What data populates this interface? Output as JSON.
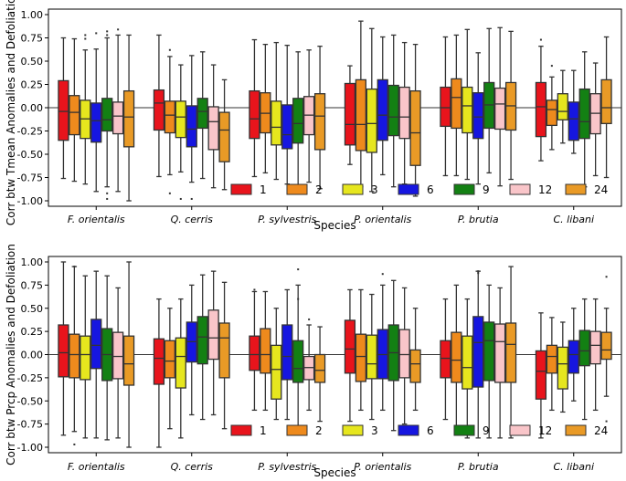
{
  "chart_data": [
    {
      "type": "box",
      "title": "",
      "xlabel": "Species",
      "ylabel": "Corr btw Tmean Anomalies and Defoliation",
      "ylim": [
        -1.0,
        1.0
      ],
      "yticks": [
        "1.00",
        "0.75",
        "0.50",
        "0.25",
        "0.00",
        "-0.25",
        "-0.50",
        "-0.75",
        "-1.00"
      ],
      "ytick_values": [
        1.0,
        0.75,
        0.5,
        0.25,
        0.0,
        -0.25,
        -0.5,
        -0.75,
        -1.0
      ],
      "reference_line": 0.0,
      "categories": [
        "F. orientalis",
        "Q. cerris",
        "P. sylvestris",
        "P. orientalis",
        "P. brutia",
        "C. libani"
      ],
      "legend_placement": "bottom-right",
      "series": [
        {
          "name": "1",
          "color": "#e8141c",
          "boxes": [
            {
              "wlo": -0.76,
              "q1": -0.35,
              "med": -0.04,
              "q3": 0.29,
              "whi": 0.75
            },
            {
              "wlo": -0.74,
              "q1": -0.24,
              "med": 0.05,
              "q3": 0.19,
              "whi": 0.78
            },
            {
              "wlo": -0.74,
              "q1": -0.33,
              "med": -0.12,
              "q3": 0.18,
              "whi": 0.73
            },
            {
              "wlo": -0.61,
              "q1": -0.4,
              "med": -0.18,
              "q3": 0.26,
              "whi": 0.45
            },
            {
              "wlo": -0.73,
              "q1": -0.2,
              "med": 0.0,
              "q3": 0.22,
              "whi": 0.76
            },
            {
              "wlo": -0.57,
              "q1": -0.31,
              "med": 0.01,
              "q3": 0.27,
              "whi": 0.66
            }
          ]
        },
        {
          "name": "2",
          "color": "#ee8a1d",
          "boxes": [
            {
              "wlo": -0.79,
              "q1": -0.29,
              "med": -0.05,
              "q3": 0.13,
              "whi": 0.74
            },
            {
              "wlo": -0.72,
              "q1": -0.27,
              "med": -0.08,
              "q3": 0.07,
              "whi": 0.55
            },
            {
              "wlo": -0.7,
              "q1": -0.27,
              "med": -0.06,
              "q3": 0.16,
              "whi": 0.68
            },
            {
              "wlo": -0.85,
              "q1": -0.46,
              "med": -0.18,
              "q3": 0.3,
              "whi": 0.93
            },
            {
              "wlo": -0.73,
              "q1": -0.22,
              "med": 0.11,
              "q3": 0.31,
              "whi": 0.78
            },
            {
              "wlo": -0.45,
              "q1": -0.19,
              "med": -0.02,
              "q3": 0.08,
              "whi": 0.33
            }
          ]
        },
        {
          "name": "3",
          "color": "#e6e61e",
          "boxes": [
            {
              "wlo": -0.82,
              "q1": -0.33,
              "med": -0.12,
              "q3": 0.08,
              "whi": 0.62
            },
            {
              "wlo": -0.69,
              "q1": -0.32,
              "med": -0.1,
              "q3": 0.07,
              "whi": 0.46
            },
            {
              "wlo": -0.77,
              "q1": -0.4,
              "med": -0.21,
              "q3": 0.07,
              "whi": 0.7
            },
            {
              "wlo": -0.9,
              "q1": -0.48,
              "med": -0.17,
              "q3": 0.2,
              "whi": 0.85
            },
            {
              "wlo": -0.77,
              "q1": -0.27,
              "med": 0.02,
              "q3": 0.22,
              "whi": 0.84
            },
            {
              "wlo": -0.38,
              "q1": -0.13,
              "med": -0.04,
              "q3": 0.15,
              "whi": 0.4
            }
          ]
        },
        {
          "name": "6",
          "color": "#1616e0",
          "boxes": [
            {
              "wlo": -0.9,
              "q1": -0.37,
              "med": -0.14,
              "q3": 0.05,
              "whi": 0.63
            },
            {
              "wlo": -0.8,
              "q1": -0.42,
              "med": -0.23,
              "q3": 0.02,
              "whi": 0.56
            },
            {
              "wlo": -0.82,
              "q1": -0.44,
              "med": -0.29,
              "q3": 0.03,
              "whi": 0.67
            },
            {
              "wlo": -0.72,
              "q1": -0.35,
              "med": -0.08,
              "q3": 0.3,
              "whi": 0.76
            },
            {
              "wlo": -0.82,
              "q1": -0.33,
              "med": -0.1,
              "q3": 0.16,
              "whi": 0.59
            },
            {
              "wlo": -0.49,
              "q1": -0.35,
              "med": -0.12,
              "q3": 0.06,
              "whi": 0.4
            }
          ]
        },
        {
          "name": "9",
          "color": "#138013",
          "boxes": [
            {
              "wlo": -0.85,
              "q1": -0.25,
              "med": -0.13,
              "q3": 0.1,
              "whi": 0.75
            },
            {
              "wlo": -0.76,
              "q1": -0.22,
              "med": -0.04,
              "q3": 0.1,
              "whi": 0.6
            },
            {
              "wlo": -0.87,
              "q1": -0.38,
              "med": -0.17,
              "q3": 0.1,
              "whi": 0.6
            },
            {
              "wlo": -0.85,
              "q1": -0.3,
              "med": -0.1,
              "q3": 0.24,
              "whi": 0.78
            },
            {
              "wlo": -0.7,
              "q1": -0.22,
              "med": 0.03,
              "q3": 0.27,
              "whi": 0.85
            },
            {
              "wlo": -0.85,
              "q1": -0.33,
              "med": -0.15,
              "q3": 0.2,
              "whi": 0.6
            }
          ]
        },
        {
          "name": "12",
          "color": "#f9c5c9",
          "boxes": [
            {
              "wlo": -0.9,
              "q1": -0.28,
              "med": -0.09,
              "q3": 0.06,
              "whi": 0.78
            },
            {
              "wlo": -0.86,
              "q1": -0.45,
              "med": -0.15,
              "q3": 0.01,
              "whi": 0.46
            },
            {
              "wlo": -0.8,
              "q1": -0.29,
              "med": -0.08,
              "q3": 0.12,
              "whi": 0.62
            },
            {
              "wlo": -0.82,
              "q1": -0.33,
              "med": -0.1,
              "q3": 0.22,
              "whi": 0.7
            },
            {
              "wlo": -0.84,
              "q1": -0.23,
              "med": 0.04,
              "q3": 0.21,
              "whi": 0.86
            },
            {
              "wlo": -0.73,
              "q1": -0.28,
              "med": -0.06,
              "q3": 0.15,
              "whi": 0.48
            }
          ]
        },
        {
          "name": "24",
          "color": "#e99a26",
          "boxes": [
            {
              "wlo": -1.0,
              "q1": -0.42,
              "med": -0.1,
              "q3": 0.18,
              "whi": 0.78
            },
            {
              "wlo": -0.88,
              "q1": -0.58,
              "med": -0.24,
              "q3": -0.05,
              "whi": 0.3
            },
            {
              "wlo": -0.87,
              "q1": -0.45,
              "med": -0.09,
              "q3": 0.15,
              "whi": 0.66
            },
            {
              "wlo": -0.95,
              "q1": -0.62,
              "med": -0.27,
              "q3": 0.18,
              "whi": 0.68
            },
            {
              "wlo": -0.77,
              "q1": -0.24,
              "med": 0.02,
              "q3": 0.27,
              "whi": 0.82
            },
            {
              "wlo": -0.75,
              "q1": -0.17,
              "med": 0.0,
              "q3": 0.3,
              "whi": 0.76
            }
          ]
        }
      ],
      "outliers": [
        {
          "category": 0,
          "series": 2,
          "values": [
            0.78,
            0.74
          ]
        },
        {
          "category": 0,
          "series": 3,
          "values": [
            0.8
          ]
        },
        {
          "category": 0,
          "series": 4,
          "values": [
            0.82,
            0.78,
            -0.92,
            -0.98
          ]
        },
        {
          "category": 0,
          "series": 5,
          "values": [
            0.84
          ]
        },
        {
          "category": 1,
          "series": 1,
          "values": [
            0.62,
            -0.92
          ]
        },
        {
          "category": 1,
          "series": 2,
          "values": [
            -0.98
          ]
        },
        {
          "category": 1,
          "series": 3,
          "values": [
            -0.98
          ]
        },
        {
          "category": 5,
          "series": 0,
          "values": [
            0.73
          ]
        },
        {
          "category": 5,
          "series": 1,
          "values": [
            0.45
          ]
        }
      ]
    },
    {
      "type": "box",
      "title": "",
      "xlabel": "Species",
      "ylabel": "Corr btw Prcp Anomalies and Defoliation",
      "ylim": [
        -1.0,
        1.0
      ],
      "yticks": [
        "1.00",
        "0.75",
        "0.50",
        "0.25",
        "0.00",
        "-0.25",
        "-0.50",
        "-0.75",
        "-1.00"
      ],
      "ytick_values": [
        1.0,
        0.75,
        0.5,
        0.25,
        0.0,
        -0.25,
        -0.5,
        -0.75,
        -1.0
      ],
      "reference_line": 0.0,
      "categories": [
        "F. orientalis",
        "Q. cerris",
        "P. sylvestris",
        "P. orientalis",
        "P. brutia",
        "C. libani"
      ],
      "legend_placement": "bottom-right",
      "series": [
        {
          "name": "1",
          "color": "#e8141c",
          "boxes": [
            {
              "wlo": -0.87,
              "q1": -0.24,
              "med": 0.02,
              "q3": 0.32,
              "whi": 1.0
            },
            {
              "wlo": -1.0,
              "q1": -0.32,
              "med": -0.04,
              "q3": 0.17,
              "whi": 0.6
            },
            {
              "wlo": -0.6,
              "q1": -0.17,
              "med": 0.0,
              "q3": 0.2,
              "whi": 0.68
            },
            {
              "wlo": -0.72,
              "q1": -0.2,
              "med": 0.06,
              "q3": 0.37,
              "whi": 0.7
            },
            {
              "wlo": -0.7,
              "q1": -0.25,
              "med": -0.04,
              "q3": 0.15,
              "whi": 0.6
            },
            {
              "wlo": -0.9,
              "q1": -0.48,
              "med": -0.18,
              "q3": 0.04,
              "whi": 0.45
            }
          ]
        },
        {
          "name": "2",
          "color": "#ee8a1d",
          "boxes": [
            {
              "wlo": -0.83,
              "q1": -0.25,
              "med": 0.0,
              "q3": 0.22,
              "whi": 0.95
            },
            {
              "wlo": -0.8,
              "q1": -0.25,
              "med": -0.07,
              "q3": 0.15,
              "whi": 0.5
            },
            {
              "wlo": -0.6,
              "q1": -0.2,
              "med": 0.0,
              "q3": 0.28,
              "whi": 0.68
            },
            {
              "wlo": -0.6,
              "q1": -0.29,
              "med": -0.02,
              "q3": 0.22,
              "whi": 0.7
            },
            {
              "wlo": -0.82,
              "q1": -0.3,
              "med": -0.06,
              "q3": 0.24,
              "whi": 0.75
            },
            {
              "wlo": -0.6,
              "q1": -0.2,
              "med": -0.02,
              "q3": 0.1,
              "whi": 0.4
            }
          ]
        },
        {
          "name": "3",
          "color": "#e6e61e",
          "boxes": [
            {
              "wlo": -0.9,
              "q1": -0.27,
              "med": 0.0,
              "q3": 0.2,
              "whi": 0.85
            },
            {
              "wlo": -0.9,
              "q1": -0.36,
              "med": -0.02,
              "q3": 0.18,
              "whi": 0.6
            },
            {
              "wlo": -0.7,
              "q1": -0.48,
              "med": -0.16,
              "q3": 0.1,
              "whi": 0.5
            },
            {
              "wlo": -0.7,
              "q1": -0.26,
              "med": -0.1,
              "q3": 0.21,
              "whi": 0.65
            },
            {
              "wlo": -0.9,
              "q1": -0.37,
              "med": -0.14,
              "q3": 0.2,
              "whi": 0.6
            },
            {
              "wlo": -0.62,
              "q1": -0.37,
              "med": -0.1,
              "q3": 0.08,
              "whi": 0.35
            }
          ]
        },
        {
          "name": "6",
          "color": "#1616e0",
          "boxes": [
            {
              "wlo": -0.9,
              "q1": -0.15,
              "med": 0.1,
              "q3": 0.38,
              "whi": 0.9
            },
            {
              "wlo": -0.65,
              "q1": -0.08,
              "med": 0.14,
              "q3": 0.35,
              "whi": 0.75
            },
            {
              "wlo": -0.7,
              "q1": -0.27,
              "med": -0.02,
              "q3": 0.32,
              "whi": 0.7
            },
            {
              "wlo": -0.6,
              "q1": -0.26,
              "med": 0.0,
              "q3": 0.27,
              "whi": 0.75
            },
            {
              "wlo": -0.9,
              "q1": -0.35,
              "med": 0.13,
              "q3": 0.41,
              "whi": 0.9
            },
            {
              "wlo": -0.5,
              "q1": -0.2,
              "med": 0.0,
              "q3": 0.15,
              "whi": 0.5
            }
          ]
        },
        {
          "name": "9",
          "color": "#138013",
          "boxes": [
            {
              "wlo": -0.92,
              "q1": -0.28,
              "med": 0.0,
              "q3": 0.28,
              "whi": 0.85
            },
            {
              "wlo": -0.7,
              "q1": -0.1,
              "med": 0.19,
              "q3": 0.41,
              "whi": 0.86
            },
            {
              "wlo": -0.82,
              "q1": -0.3,
              "med": -0.15,
              "q3": 0.15,
              "whi": 0.75
            },
            {
              "wlo": -0.82,
              "q1": -0.28,
              "med": 0.02,
              "q3": 0.32,
              "whi": 0.8
            },
            {
              "wlo": -0.9,
              "q1": -0.28,
              "med": 0.15,
              "q3": 0.35,
              "whi": 0.75
            },
            {
              "wlo": -0.7,
              "q1": -0.12,
              "med": 0.04,
              "q3": 0.26,
              "whi": 0.6
            }
          ]
        },
        {
          "name": "12",
          "color": "#f9c5c9",
          "boxes": [
            {
              "wlo": -0.9,
              "q1": -0.26,
              "med": -0.02,
              "q3": 0.24,
              "whi": 0.72
            },
            {
              "wlo": -0.65,
              "q1": -0.05,
              "med": 0.18,
              "q3": 0.48,
              "whi": 0.9
            },
            {
              "wlo": -0.6,
              "q1": -0.27,
              "med": -0.14,
              "q3": -0.02,
              "whi": 0.32
            },
            {
              "wlo": -0.75,
              "q1": -0.25,
              "med": 0.0,
              "q3": 0.27,
              "whi": 0.72
            },
            {
              "wlo": -0.9,
              "q1": -0.3,
              "med": 0.14,
              "q3": 0.33,
              "whi": 0.72
            },
            {
              "wlo": -0.6,
              "q1": -0.1,
              "med": 0.1,
              "q3": 0.25,
              "whi": 0.6
            }
          ]
        },
        {
          "name": "24",
          "color": "#e99a26",
          "boxes": [
            {
              "wlo": -1.0,
              "q1": -0.33,
              "med": -0.1,
              "q3": 0.2,
              "whi": 1.0
            },
            {
              "wlo": -0.8,
              "q1": -0.25,
              "med": 0.18,
              "q3": 0.34,
              "whi": 0.78
            },
            {
              "wlo": -0.72,
              "q1": -0.3,
              "med": -0.17,
              "q3": 0.0,
              "whi": 0.3
            },
            {
              "wlo": -0.6,
              "q1": -0.3,
              "med": -0.1,
              "q3": 0.05,
              "whi": 0.5
            },
            {
              "wlo": -0.9,
              "q1": -0.3,
              "med": 0.11,
              "q3": 0.34,
              "whi": 0.95
            },
            {
              "wlo": -0.45,
              "q1": -0.05,
              "med": 0.05,
              "q3": 0.24,
              "whi": 0.5
            }
          ]
        }
      ],
      "outliers": [
        {
          "category": 0,
          "series": 1,
          "values": [
            0.95,
            -0.97
          ]
        },
        {
          "category": 2,
          "series": 0,
          "values": [
            0.7
          ]
        },
        {
          "category": 2,
          "series": 4,
          "values": [
            0.92,
            0.6
          ]
        },
        {
          "category": 2,
          "series": 5,
          "values": [
            0.38
          ]
        },
        {
          "category": 3,
          "series": 3,
          "values": [
            0.87
          ]
        },
        {
          "category": 4,
          "series": 3,
          "values": [
            0.88,
            0.9
          ]
        },
        {
          "category": 5,
          "series": 6,
          "values": [
            0.84,
            -0.72
          ]
        }
      ]
    }
  ]
}
